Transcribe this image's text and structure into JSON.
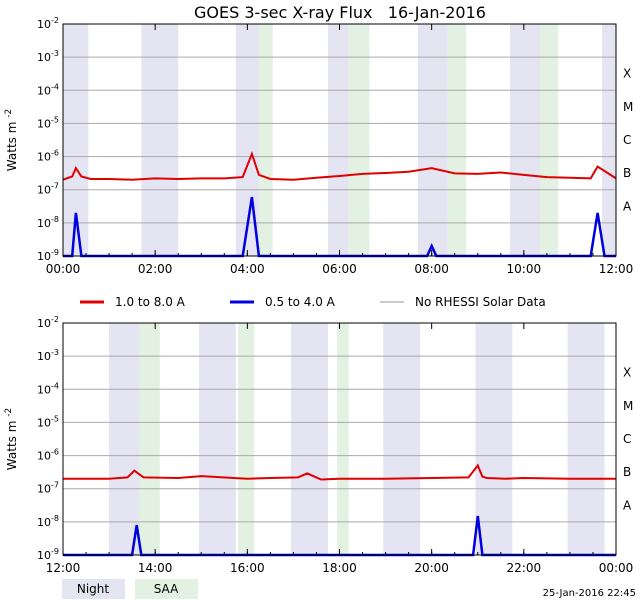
{
  "title": "GOES 3-sec X-ray Flux   16-Jan-2016",
  "ylabel": "Watts m",
  "ylabel_sup": "-2",
  "footer_timestamp": "25-Jan-2016 22:45",
  "colors": {
    "long": "#e00000",
    "short": "#0000e0",
    "norhessi": "#999999",
    "night": "#e4e4f2",
    "saa": "#e2f1e2",
    "grid": "#aaaaaa"
  },
  "legend": [
    {
      "label": "1.0 to 8.0 A",
      "color": "#e00000"
    },
    {
      "label": "0.5 to 4.0 A",
      "color": "#0000e0"
    },
    {
      "label": "No RHESSI Solar Data",
      "color": "#999999"
    }
  ],
  "band_legend": [
    {
      "label": "Night",
      "color": "#e4e4f2"
    },
    {
      "label": "SAA",
      "color": "#e2f1e2"
    }
  ],
  "chart_data": [
    {
      "type": "line",
      "title": "GOES 3-sec X-ray Flux   16-Jan-2016",
      "xlabel": "",
      "ylabel": "Watts m-2",
      "yscale": "log",
      "ylim": [
        1e-09,
        0.01
      ],
      "xlim_hours": [
        0,
        12
      ],
      "x_tick_labels": [
        "00:00",
        "02:00",
        "04:00",
        "06:00",
        "08:00",
        "10:00",
        "12:00"
      ],
      "y_tick_exponents": [
        -9,
        -8,
        -7,
        -6,
        -5,
        -4,
        -3,
        -2
      ],
      "flare_classes": [
        "A",
        "B",
        "C",
        "M",
        "X"
      ],
      "night_bands": [
        [
          0.0,
          0.55
        ],
        [
          1.7,
          2.5
        ],
        [
          3.75,
          4.25
        ],
        [
          5.75,
          6.2
        ],
        [
          7.7,
          8.35
        ],
        [
          9.7,
          10.35
        ],
        [
          11.7,
          12.0
        ]
      ],
      "saa_bands": [
        [
          4.25,
          4.55
        ],
        [
          6.2,
          6.65
        ],
        [
          8.35,
          8.75
        ],
        [
          10.35,
          10.75
        ]
      ],
      "series": [
        {
          "name": "1.0 to 8.0 A",
          "style": "long",
          "x": [
            0.0,
            0.2,
            0.28,
            0.4,
            0.6,
            1.0,
            1.5,
            2.0,
            2.5,
            3.0,
            3.5,
            3.9,
            4.1,
            4.25,
            4.5,
            5.0,
            5.5,
            6.0,
            6.5,
            7.0,
            7.5,
            8.0,
            8.5,
            9.0,
            9.5,
            10.0,
            10.5,
            11.0,
            11.45,
            11.6,
            12.0
          ],
          "y": [
            2e-07,
            2.5e-07,
            4.5e-07,
            2.5e-07,
            2.1e-07,
            2.1e-07,
            2e-07,
            2.2e-07,
            2.1e-07,
            2.2e-07,
            2.2e-07,
            2.4e-07,
            1.2e-06,
            2.8e-07,
            2.1e-07,
            2e-07,
            2.3e-07,
            2.6e-07,
            3e-07,
            3.2e-07,
            3.5e-07,
            4.5e-07,
            3.1e-07,
            3e-07,
            3.3e-07,
            2.8e-07,
            2.4e-07,
            2.3e-07,
            2.2e-07,
            5e-07,
            2.2e-07
          ]
        },
        {
          "name": "0.5 to 4.0 A",
          "style": "short",
          "x": [
            0.0,
            0.2,
            0.28,
            0.4,
            0.6,
            2.0,
            3.9,
            4.1,
            4.25,
            4.5,
            6.0,
            7.5,
            7.9,
            8.0,
            8.1,
            10.0,
            11.45,
            11.6,
            11.75,
            12.0
          ],
          "y": [
            1e-09,
            1e-09,
            2e-08,
            1e-09,
            1e-09,
            1e-09,
            1e-09,
            6e-08,
            1e-09,
            1e-09,
            1e-09,
            1e-09,
            1e-09,
            2e-09,
            1e-09,
            1e-09,
            1e-09,
            2e-08,
            1e-09,
            1e-09
          ]
        }
      ]
    },
    {
      "type": "line",
      "title": "",
      "xlabel": "",
      "ylabel": "Watts m-2",
      "yscale": "log",
      "ylim": [
        1e-09,
        0.01
      ],
      "xlim_hours": [
        12,
        24
      ],
      "x_tick_labels": [
        "12:00",
        "14:00",
        "16:00",
        "18:00",
        "20:00",
        "22:00",
        "00:00"
      ],
      "y_tick_exponents": [
        -9,
        -8,
        -7,
        -6,
        -5,
        -4,
        -3,
        -2
      ],
      "flare_classes": [
        "A",
        "B",
        "C",
        "M",
        "X"
      ],
      "night_bands": [
        [
          13.0,
          13.75
        ],
        [
          14.95,
          15.75
        ],
        [
          16.95,
          17.75
        ],
        [
          18.95,
          19.75
        ],
        [
          20.95,
          21.75
        ],
        [
          22.95,
          23.75
        ]
      ],
      "saa_bands": [
        [
          13.65,
          14.1
        ],
        [
          15.8,
          16.15
        ],
        [
          17.95,
          18.2
        ]
      ],
      "series": [
        {
          "name": "1.0 to 8.0 A",
          "style": "long",
          "x": [
            12.0,
            13.0,
            13.4,
            13.55,
            13.75,
            14.5,
            15.0,
            16.0,
            16.5,
            17.1,
            17.3,
            17.6,
            18.0,
            19.0,
            20.0,
            20.8,
            21.0,
            21.1,
            21.2,
            21.6,
            22.0,
            23.0,
            24.0
          ],
          "y": [
            2e-07,
            2e-07,
            2.2e-07,
            3.5e-07,
            2.2e-07,
            2.1e-07,
            2.4e-07,
            2e-07,
            2.1e-07,
            2.2e-07,
            2.9e-07,
            1.9e-07,
            2e-07,
            2e-07,
            2.1e-07,
            2.2e-07,
            5e-07,
            2.3e-07,
            2.1e-07,
            2e-07,
            2.1e-07,
            2e-07,
            2e-07
          ]
        },
        {
          "name": "0.5 to 4.0 A",
          "style": "short",
          "x": [
            12.0,
            13.5,
            13.6,
            13.7,
            15.0,
            20.9,
            21.0,
            21.1,
            22.0,
            24.0
          ],
          "y": [
            1e-09,
            1e-09,
            8e-09,
            1e-09,
            1e-09,
            1e-09,
            1.5e-08,
            1e-09,
            1e-09,
            1e-09
          ]
        }
      ]
    }
  ]
}
